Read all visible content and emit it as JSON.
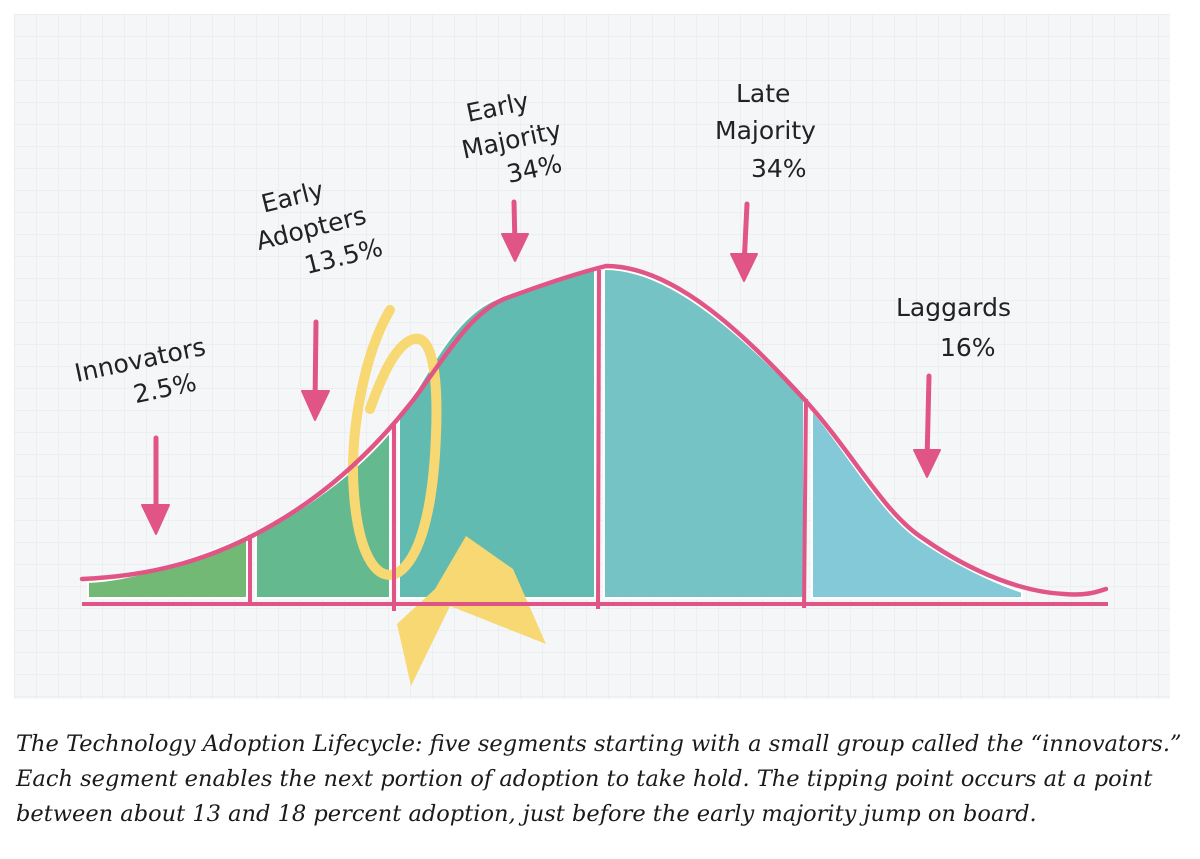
{
  "figure": {
    "segments": [
      {
        "name": "Innovators",
        "percent": "2.5%",
        "color": "#71b974"
      },
      {
        "name": "Early Adopters",
        "percent": "13.5%",
        "color": "#65b98f"
      },
      {
        "name": "Early Majority",
        "percent": "34%",
        "color": "#62bbb1"
      },
      {
        "name": "Late Majority",
        "percent": "34%",
        "color": "#75c3c4"
      },
      {
        "name": "Laggards",
        "percent": "16%",
        "color": "#84c9d8"
      }
    ],
    "labels": {
      "innovators": {
        "line1": "Innovators",
        "line2": "2.5%"
      },
      "early_adopters": {
        "line1": "Early",
        "line2": "Adopters",
        "line3": "13.5%"
      },
      "early_majority": {
        "line1": "Early",
        "line2": "Majority",
        "line3": "34%"
      },
      "late_majority": {
        "line1": "Late",
        "line2": "Majority",
        "line3": "34%"
      },
      "laggards": {
        "line1": "Laggards",
        "line2": "16%"
      }
    },
    "colors": {
      "curve": "#e05586",
      "arrow": "#e05586",
      "highlight": "#f7d873",
      "grid": "#e3e6ea",
      "background": "#f5f6f8"
    }
  },
  "caption": {
    "line1": "The Technology Adoption Lifecycle: five segments starting with a small group called the “innovators.”",
    "line2": "Each segment enables the next portion of adoption to take hold. The tipping point occurs at a point",
    "line3": "between about 13 and 18 percent adoption, just before the early majority jump on board."
  }
}
